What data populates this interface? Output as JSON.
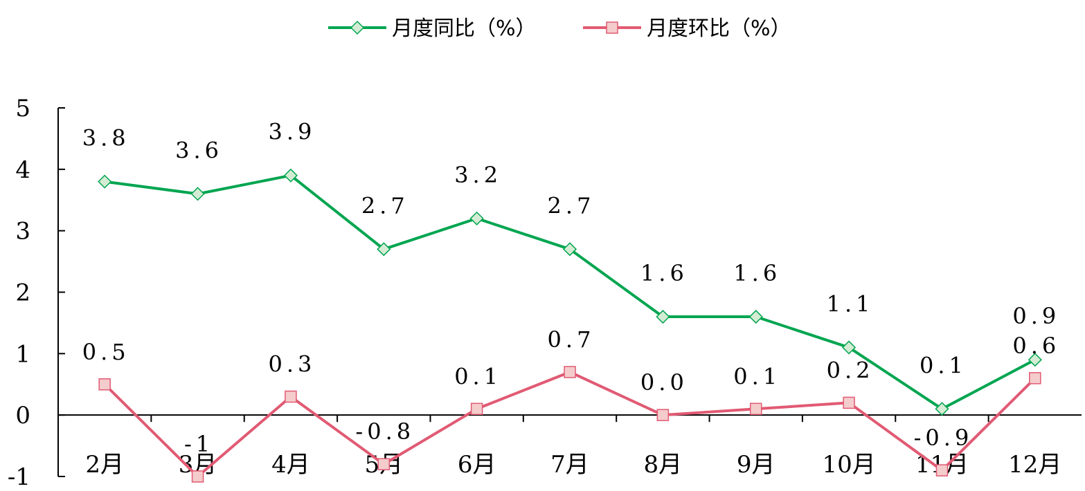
{
  "chart_data": {
    "type": "line",
    "categories": [
      "2月",
      "3月",
      "4月",
      "5月",
      "6月",
      "7月",
      "8月",
      "9月",
      "10月",
      "11月",
      "12月"
    ],
    "ylim": [
      -1,
      5
    ],
    "yticks": [
      -1,
      0,
      1,
      2,
      3,
      4,
      5
    ],
    "grid": false,
    "legend_position": "top-center",
    "series": [
      {
        "name": "月度同比（%）",
        "color": "#00a550",
        "marker": "diamond",
        "marker_fill": "#d4ecd4",
        "values": [
          3.8,
          3.6,
          3.9,
          2.7,
          3.2,
          2.7,
          1.6,
          1.6,
          1.1,
          0.1,
          0.9
        ],
        "labels": [
          "3.8",
          "3.6",
          "3.9",
          "2.7",
          "3.2",
          "2.7",
          "1.6",
          "1.6",
          "1.1",
          "0.1",
          "0.9"
        ]
      },
      {
        "name": "月度环比（%）",
        "color": "#e15a73",
        "marker": "square",
        "marker_fill": "#f4cccc",
        "values": [
          0.5,
          -1,
          0.3,
          -0.8,
          0.1,
          0.7,
          0.0,
          0.1,
          0.2,
          -0.9,
          0.6
        ],
        "labels": [
          "0.5",
          "-1",
          "0.3",
          "-0.8",
          "0.1",
          "0.7",
          "0.0",
          "0.1",
          "0.2",
          "-0.9",
          "0.6"
        ]
      }
    ]
  }
}
